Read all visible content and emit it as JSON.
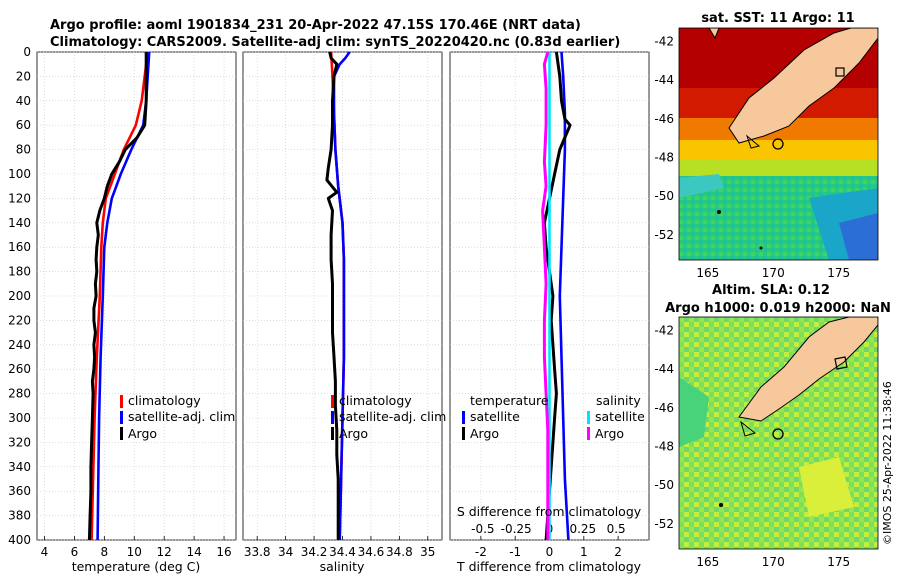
{
  "header": {
    "line1": "Argo profile: aoml 1901834_231 20-Apr-2022 47.15S 170.46E (NRT data)",
    "line2": "Climatology: CARS2009. Satellite-adj clim: synTS_20220420.nc (0.83d earlier)"
  },
  "colors": {
    "climatology": "#ff0000",
    "satellite": "#0000ff",
    "argo": "#000000",
    "sat_salinity": "#00e5ff",
    "argo_salinity_diff": "#ff00ff",
    "land": "#f7c89c"
  },
  "depth_ticks": [
    "0",
    "20",
    "40",
    "60",
    "80",
    "100",
    "120",
    "140",
    "160",
    "180",
    "200",
    "220",
    "240",
    "260",
    "280",
    "300",
    "320",
    "340",
    "360",
    "380",
    "400"
  ],
  "chart_data": [
    {
      "type": "line",
      "name": "temperature",
      "xlabel": "temperature (deg C)",
      "ylabel": "depth",
      "xlim": [
        3.5,
        16.8
      ],
      "ylim": [
        400,
        0
      ],
      "xticks": [
        "4",
        "6",
        "8",
        "10",
        "12",
        "14",
        "16"
      ],
      "xtick_values": [
        4,
        6,
        8,
        10,
        12,
        14,
        16
      ],
      "legend": [
        "climatology",
        "satellite-adj. clim",
        "Argo"
      ],
      "series": [
        {
          "name": "climatology",
          "depth": [
            0,
            20,
            40,
            60,
            80,
            100,
            120,
            140,
            160,
            200,
            250,
            300,
            350,
            400
          ],
          "values": [
            10.9,
            10.7,
            10.5,
            10.1,
            9.3,
            8.7,
            8.1,
            7.9,
            7.8,
            7.7,
            7.5,
            7.35,
            7.25,
            7.15
          ]
        },
        {
          "name": "satellite-adj. clim",
          "depth": [
            0,
            20,
            40,
            60,
            80,
            100,
            120,
            140,
            160,
            200,
            250,
            300,
            350,
            400
          ],
          "values": [
            11.0,
            10.9,
            10.8,
            10.6,
            9.8,
            9.1,
            8.5,
            8.2,
            8.0,
            7.9,
            7.75,
            7.65,
            7.6,
            7.55
          ]
        },
        {
          "name": "Argo",
          "depth": [
            0,
            20,
            40,
            60,
            70,
            80,
            90,
            100,
            110,
            120,
            130,
            140,
            150,
            160,
            170,
            180,
            190,
            200,
            210,
            220,
            230,
            240,
            250,
            260,
            270,
            280,
            300,
            320,
            340,
            360,
            380,
            400
          ],
          "values": [
            10.8,
            10.8,
            10.8,
            10.7,
            10.2,
            9.4,
            9.0,
            8.5,
            8.2,
            8.0,
            7.7,
            7.5,
            7.6,
            7.5,
            7.45,
            7.5,
            7.4,
            7.45,
            7.3,
            7.3,
            7.4,
            7.3,
            7.35,
            7.3,
            7.2,
            7.25,
            7.2,
            7.15,
            7.1,
            7.1,
            7.05,
            7.0
          ]
        }
      ]
    },
    {
      "type": "line",
      "name": "salinity",
      "xlabel": "salinity",
      "ylabel": "depth",
      "xlim": [
        33.7,
        35.1
      ],
      "ylim": [
        400,
        0
      ],
      "xticks": [
        "33.8",
        "34",
        "34.2",
        "34.4",
        "34.6",
        "34.8",
        "35"
      ],
      "xtick_values": [
        33.8,
        34.0,
        34.2,
        34.4,
        34.6,
        34.8,
        35.0
      ],
      "legend": [
        "climatology",
        "satellite-adj. clim",
        "Argo"
      ],
      "series": [
        {
          "name": "climatology",
          "depth": [
            0,
            20,
            50,
            80,
            110,
            140,
            170,
            200,
            250,
            300,
            350,
            400
          ],
          "values": [
            34.32,
            34.33,
            34.34,
            34.35,
            34.37,
            34.4,
            34.41,
            34.41,
            34.41,
            34.4,
            34.39,
            34.38
          ]
        },
        {
          "name": "satellite-adj. clim",
          "depth": [
            0,
            5,
            10,
            20,
            50,
            80,
            110,
            140,
            170,
            200,
            250,
            300,
            350,
            400
          ],
          "values": [
            34.45,
            34.42,
            34.38,
            34.34,
            34.34,
            34.35,
            34.37,
            34.4,
            34.41,
            34.41,
            34.41,
            34.4,
            34.39,
            34.38
          ]
        },
        {
          "name": "Argo",
          "depth": [
            0,
            5,
            10,
            20,
            40,
            60,
            80,
            95,
            105,
            115,
            120,
            130,
            150,
            170,
            190,
            210,
            230,
            250,
            270,
            290,
            310,
            330,
            350,
            370,
            390,
            400
          ],
          "values": [
            34.31,
            34.32,
            34.36,
            34.34,
            34.33,
            34.33,
            34.32,
            34.3,
            34.29,
            34.36,
            34.3,
            34.33,
            34.32,
            34.32,
            34.33,
            34.33,
            34.33,
            34.34,
            34.35,
            34.35,
            34.36,
            34.36,
            34.37,
            34.37,
            34.37,
            34.37
          ]
        }
      ]
    },
    {
      "type": "line",
      "name": "difference from climatology",
      "xlabel": "T difference from climatology",
      "top_label": "S difference from climatology",
      "ylabel": "depth",
      "xlim": [
        -2.9,
        2.9
      ],
      "ylim": [
        400,
        0
      ],
      "xticks": [
        "-2",
        "-1",
        "0",
        "1",
        "2"
      ],
      "xtick_values": [
        -2,
        -1,
        0,
        1,
        2
      ],
      "s_ticks": [
        "-0.5",
        "-0.25",
        "0",
        "0.25",
        "0.5"
      ],
      "legend_temperature_title": "temperature",
      "legend_salinity_title": "salinity",
      "legend_temperature": [
        "satellite",
        "Argo"
      ],
      "legend_salinity": [
        "satellite",
        "Argo"
      ],
      "series": [
        {
          "name": "T satellite",
          "depth": [
            0,
            20,
            50,
            80,
            120,
            160,
            200,
            250,
            300,
            350,
            400
          ],
          "values": [
            0.35,
            0.4,
            0.45,
            0.45,
            0.4,
            0.35,
            0.3,
            0.35,
            0.4,
            0.45,
            0.55
          ]
        },
        {
          "name": "T Argo",
          "depth": [
            0,
            20,
            40,
            55,
            60,
            70,
            80,
            100,
            120,
            140,
            160,
            180,
            200,
            220,
            240,
            260,
            280,
            300,
            320,
            340,
            360,
            380,
            400
          ],
          "values": [
            0.2,
            0.3,
            0.35,
            0.45,
            0.6,
            0.45,
            0.3,
            0.15,
            0.0,
            -0.15,
            -0.1,
            0.0,
            0.1,
            0.05,
            0.1,
            0.15,
            0.2,
            0.15,
            0.1,
            0.05,
            0.0,
            -0.05,
            -0.1
          ]
        },
        {
          "name": "S satellite",
          "depth": [
            0,
            20,
            60,
            100,
            150,
            200,
            250,
            300,
            350,
            400
          ],
          "values": [
            0.0,
            0.0,
            0.0,
            0.0,
            0.0,
            0.0,
            0.0,
            0.0,
            0.0,
            0.0
          ]
        },
        {
          "name": "S Argo",
          "depth": [
            0,
            10,
            30,
            60,
            90,
            110,
            130,
            160,
            190,
            220,
            250,
            280,
            310,
            340,
            370,
            400
          ],
          "values": [
            -0.05,
            -0.15,
            -0.1,
            -0.1,
            -0.15,
            -0.1,
            -0.2,
            -0.15,
            -0.1,
            -0.15,
            -0.15,
            -0.1,
            -0.05,
            -0.05,
            -0.05,
            -0.05
          ]
        }
      ]
    }
  ],
  "maps": [
    {
      "title": "sat. SST: 11 Argo: 11",
      "lat_ticks": [
        "-42",
        "-44",
        "-46",
        "-48",
        "-50",
        "-52"
      ],
      "lon_ticks": [
        "165",
        "170",
        "175"
      ]
    },
    {
      "title_line1": "Altim. SLA: 0.12",
      "title_line2": "Argo h1000: 0.019 h2000: NaN",
      "lat_ticks": [
        "-42",
        "-44",
        "-46",
        "-48",
        "-50",
        "-52"
      ],
      "lon_ticks": [
        "165",
        "170",
        "175"
      ]
    }
  ],
  "stamp": "©IMOS 25-Apr-2022 11:38:46"
}
